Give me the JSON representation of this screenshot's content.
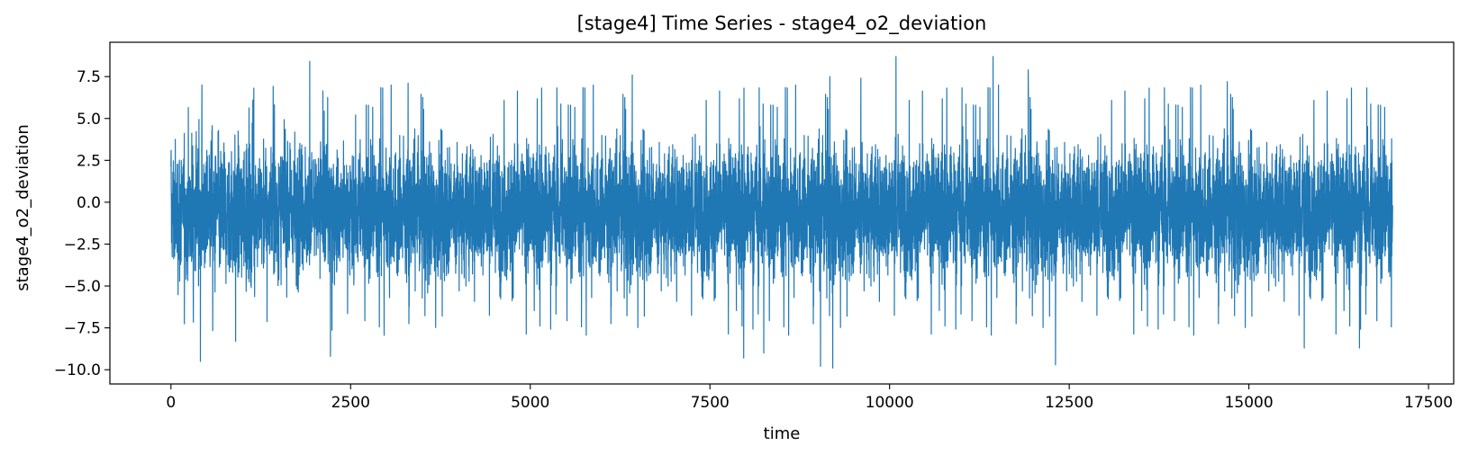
{
  "chart_data": {
    "type": "line",
    "title": "[stage4] Time Series - stage4_o2_deviation",
    "xlabel": "time",
    "ylabel": "stage4_o2_deviation",
    "xlim": [
      -850,
      17850
    ],
    "ylim": [
      -10.85,
      9.55
    ],
    "xticks": [
      0,
      2500,
      5000,
      7500,
      10000,
      12500,
      15000,
      17500
    ],
    "xtick_labels": [
      "0",
      "2500",
      "5000",
      "7500",
      "10000",
      "12500",
      "15000",
      "17500"
    ],
    "yticks": [
      -10.0,
      -7.5,
      -5.0,
      -2.5,
      0.0,
      2.5,
      5.0,
      7.5
    ],
    "ytick_labels": [
      "−10.0",
      "−7.5",
      "−5.0",
      "−2.5",
      "0.0",
      "2.5",
      "5.0",
      "7.5"
    ],
    "grid": false,
    "legend": "none",
    "series": [
      {
        "color": "#1f77b4",
        "x_range": [
          0,
          17000
        ],
        "n_points": 17000,
        "typical_band": [
          -5.0,
          4.0
        ],
        "peaks": [
          {
            "x": 1930,
            "y": 8.4
          },
          {
            "x": 10090,
            "y": 8.7
          },
          {
            "x": 11440,
            "y": 8.7
          },
          {
            "x": 11930,
            "y": 7.9
          },
          {
            "x": 6420,
            "y": 7.6
          },
          {
            "x": 9170,
            "y": 7.5
          },
          {
            "x": 9600,
            "y": 7.4
          },
          {
            "x": 14700,
            "y": 7.2
          },
          {
            "x": 3300,
            "y": 7.1
          },
          {
            "x": 430,
            "y": 7.0
          }
        ],
        "troughs": [
          {
            "x": 410,
            "y": -9.5
          },
          {
            "x": 2220,
            "y": -9.2
          },
          {
            "x": 9040,
            "y": -9.8
          },
          {
            "x": 9210,
            "y": -9.9
          },
          {
            "x": 12310,
            "y": -9.7
          },
          {
            "x": 7970,
            "y": -9.3
          },
          {
            "x": 8250,
            "y": -9.0
          },
          {
            "x": 15770,
            "y": -8.7
          },
          {
            "x": 16540,
            "y": -8.7
          },
          {
            "x": 900,
            "y": -8.3
          }
        ]
      }
    ]
  }
}
